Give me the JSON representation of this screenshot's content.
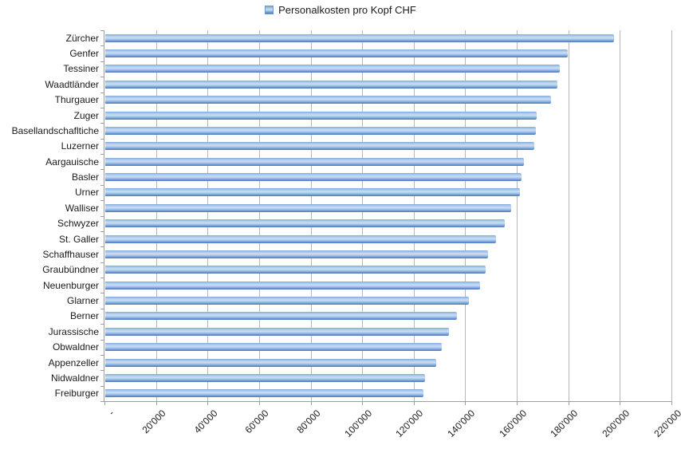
{
  "chart_data": {
    "type": "bar",
    "orientation": "horizontal",
    "title": "",
    "legend": "Personalkosten pro Kopf CHF",
    "legend_position": "top-center",
    "categories": [
      "Zürcher",
      "Genfer",
      "Tessiner",
      "Waadtländer",
      "Thurgauer",
      "Zuger",
      "Basellandschafltiche",
      "Luzerner",
      "Aargauische",
      "Basler",
      "Urner",
      "Walliser",
      "Schwyzer",
      "St. Galler",
      "Schaffhauser",
      "Graubündner",
      "Neuenburger",
      "Glarner",
      "Berner",
      "Jurassische",
      "Obwaldner",
      "Appenzeller",
      "Nidwaldner",
      "Freiburger"
    ],
    "values": [
      197500,
      179500,
      176500,
      175500,
      173000,
      167500,
      167000,
      166500,
      162500,
      161500,
      161000,
      157500,
      155000,
      151500,
      148500,
      147500,
      145500,
      141000,
      136500,
      133500,
      130500,
      128500,
      124000,
      123500
    ],
    "xlabel": "",
    "ylabel": "",
    "xlim": [
      0,
      220000
    ],
    "x_tick_step": 20000,
    "x_tick_labels": [
      "-",
      "20'000",
      "40'000",
      "60'000",
      "80'000",
      "100'000",
      "120'000",
      "140'000",
      "160'000",
      "180'000",
      "200'000",
      "220'000"
    ],
    "grid": "vertical-only",
    "colors": {
      "bar_top": "#7fa7da",
      "bar_highlight": "#cbdff5",
      "bar_mid": "#94b8e4",
      "bar_bottom": "#4d7cba",
      "gridline": "#b8b8b8",
      "axis": "#9e9e9e",
      "text": "#1a1a1a",
      "legend_marker": "#95b3d7"
    }
  }
}
